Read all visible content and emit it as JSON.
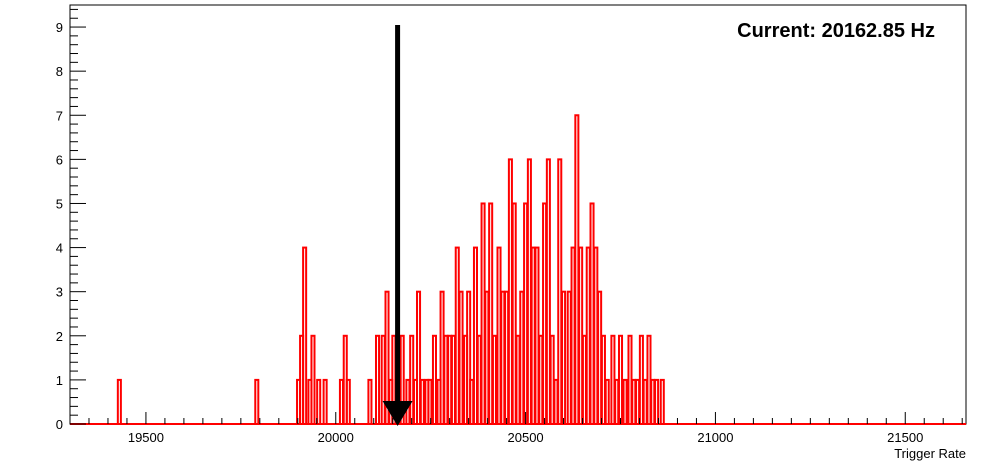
{
  "chart_data": {
    "type": "histogram",
    "title": "",
    "xlabel": "Trigger Rate",
    "ylabel": "",
    "xlim": [
      19300,
      21660
    ],
    "ylim": [
      0,
      9.5
    ],
    "x_ticks": [
      19500,
      20000,
      20500,
      21000,
      21500
    ],
    "x_tick_labels": [
      "19500",
      "20000",
      "20500",
      "21000",
      "21500"
    ],
    "y_ticks": [
      0,
      1,
      2,
      3,
      4,
      5,
      6,
      7,
      8,
      9
    ],
    "y_tick_labels": [
      "0",
      "1",
      "2",
      "3",
      "4",
      "5",
      "6",
      "7",
      "8",
      "9"
    ],
    "grid": false,
    "legend": "none",
    "line_color": "#ff0000",
    "annotation": {
      "text": "Current: 20162.85 Hz",
      "value": 20162.85,
      "marker": "arrow-down"
    },
    "bins": [
      {
        "x": 19430,
        "count": 1
      },
      {
        "x": 19792,
        "count": 1
      },
      {
        "x": 19902,
        "count": 1
      },
      {
        "x": 19910,
        "count": 2
      },
      {
        "x": 19918,
        "count": 4
      },
      {
        "x": 19932,
        "count": 1
      },
      {
        "x": 19940,
        "count": 2
      },
      {
        "x": 19955,
        "count": 1
      },
      {
        "x": 19972,
        "count": 1
      },
      {
        "x": 20015,
        "count": 1
      },
      {
        "x": 20025,
        "count": 2
      },
      {
        "x": 20033,
        "count": 1
      },
      {
        "x": 20090,
        "count": 1
      },
      {
        "x": 20110,
        "count": 2
      },
      {
        "x": 20125,
        "count": 2
      },
      {
        "x": 20135,
        "count": 3
      },
      {
        "x": 20145,
        "count": 1
      },
      {
        "x": 20153,
        "count": 2
      },
      {
        "x": 20162,
        "count": 1
      },
      {
        "x": 20175,
        "count": 2
      },
      {
        "x": 20190,
        "count": 1
      },
      {
        "x": 20200,
        "count": 2
      },
      {
        "x": 20210,
        "count": 1
      },
      {
        "x": 20218,
        "count": 3
      },
      {
        "x": 20228,
        "count": 1
      },
      {
        "x": 20240,
        "count": 1
      },
      {
        "x": 20248,
        "count": 1
      },
      {
        "x": 20260,
        "count": 2
      },
      {
        "x": 20272,
        "count": 1
      },
      {
        "x": 20280,
        "count": 3
      },
      {
        "x": 20290,
        "count": 2
      },
      {
        "x": 20300,
        "count": 2
      },
      {
        "x": 20310,
        "count": 2
      },
      {
        "x": 20320,
        "count": 4
      },
      {
        "x": 20330,
        "count": 3
      },
      {
        "x": 20342,
        "count": 2
      },
      {
        "x": 20350,
        "count": 3
      },
      {
        "x": 20358,
        "count": 1
      },
      {
        "x": 20368,
        "count": 4
      },
      {
        "x": 20378,
        "count": 2
      },
      {
        "x": 20388,
        "count": 5
      },
      {
        "x": 20398,
        "count": 3
      },
      {
        "x": 20408,
        "count": 5
      },
      {
        "x": 20418,
        "count": 2
      },
      {
        "x": 20430,
        "count": 4
      },
      {
        "x": 20440,
        "count": 3
      },
      {
        "x": 20450,
        "count": 3
      },
      {
        "x": 20460,
        "count": 6
      },
      {
        "x": 20470,
        "count": 5
      },
      {
        "x": 20480,
        "count": 2
      },
      {
        "x": 20490,
        "count": 3
      },
      {
        "x": 20500,
        "count": 5
      },
      {
        "x": 20510,
        "count": 6
      },
      {
        "x": 20520,
        "count": 4
      },
      {
        "x": 20530,
        "count": 4
      },
      {
        "x": 20540,
        "count": 2
      },
      {
        "x": 20550,
        "count": 5
      },
      {
        "x": 20560,
        "count": 6
      },
      {
        "x": 20570,
        "count": 2
      },
      {
        "x": 20580,
        "count": 1
      },
      {
        "x": 20590,
        "count": 6
      },
      {
        "x": 20600,
        "count": 3
      },
      {
        "x": 20615,
        "count": 3
      },
      {
        "x": 20625,
        "count": 4
      },
      {
        "x": 20635,
        "count": 7
      },
      {
        "x": 20645,
        "count": 4
      },
      {
        "x": 20655,
        "count": 2
      },
      {
        "x": 20665,
        "count": 4
      },
      {
        "x": 20675,
        "count": 5
      },
      {
        "x": 20685,
        "count": 4
      },
      {
        "x": 20695,
        "count": 3
      },
      {
        "x": 20705,
        "count": 2
      },
      {
        "x": 20715,
        "count": 1
      },
      {
        "x": 20730,
        "count": 2
      },
      {
        "x": 20740,
        "count": 1
      },
      {
        "x": 20750,
        "count": 2
      },
      {
        "x": 20762,
        "count": 1
      },
      {
        "x": 20775,
        "count": 2
      },
      {
        "x": 20785,
        "count": 1
      },
      {
        "x": 20795,
        "count": 1
      },
      {
        "x": 20805,
        "count": 2
      },
      {
        "x": 20815,
        "count": 1
      },
      {
        "x": 20825,
        "count": 2
      },
      {
        "x": 20835,
        "count": 1
      },
      {
        "x": 20845,
        "count": 1
      },
      {
        "x": 20860,
        "count": 1
      }
    ]
  }
}
